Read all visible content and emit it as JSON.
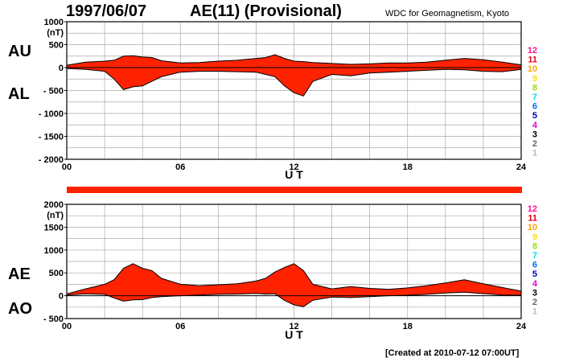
{
  "header": {
    "date": "1997/06/07",
    "title": "AE(11) (Provisional)",
    "org": "WDC for Geomagnetism, Kyoto"
  },
  "footer": {
    "created": "[Created at 2010-07-12 07:00UT]"
  },
  "colors": {
    "fill": "#ff2200",
    "outline": "#000000",
    "grid": "#aaaaaa",
    "strip": "#ff2200"
  },
  "hour_legend": [
    {
      "label": "12",
      "color": "#ff1493"
    },
    {
      "label": "11",
      "color": "#e0001a"
    },
    {
      "label": "10",
      "color": "#ffa500"
    },
    {
      "label": "9",
      "color": "#ffe100"
    },
    {
      "label": "8",
      "color": "#9be000"
    },
    {
      "label": "7",
      "color": "#00e0e0"
    },
    {
      "label": "6",
      "color": "#0070ff"
    },
    {
      "label": "5",
      "color": "#0000c0"
    },
    {
      "label": "4",
      "color": "#e000e0"
    },
    {
      "label": "3",
      "color": "#000000"
    },
    {
      "label": "2",
      "color": "#666666"
    },
    {
      "label": "1",
      "color": "#bbbbbb"
    }
  ],
  "chart_data": [
    {
      "type": "area",
      "name": "AU/AL",
      "x_ticks": [
        "00",
        "06",
        "12",
        "18",
        "24"
      ],
      "xlabel": "U T",
      "ylim": [
        -2000,
        1000
      ],
      "ytick_labels": [
        "1000",
        "500",
        "0",
        "- 500",
        "- 1000",
        "- 1500",
        "- 2000"
      ],
      "yunit": "(nT)",
      "upper_label": "AU",
      "lower_label": "AL",
      "hours": [
        0,
        1,
        2,
        2.5,
        3,
        3.5,
        4,
        4.5,
        5,
        6,
        7,
        8,
        9,
        10,
        10.5,
        11,
        11.5,
        12,
        12.5,
        13,
        14,
        15,
        16,
        17,
        18,
        19,
        20,
        21,
        22,
        23,
        24
      ],
      "upper": [
        50,
        120,
        140,
        160,
        250,
        260,
        230,
        220,
        150,
        100,
        110,
        140,
        160,
        200,
        220,
        280,
        200,
        140,
        130,
        110,
        90,
        70,
        80,
        100,
        100,
        120,
        160,
        200,
        170,
        120,
        60
      ],
      "lower": [
        -20,
        -40,
        -80,
        -250,
        -480,
        -420,
        -400,
        -300,
        -200,
        -100,
        -80,
        -80,
        -90,
        -100,
        -150,
        -200,
        -400,
        -550,
        -620,
        -300,
        -150,
        -180,
        -120,
        -100,
        -80,
        -60,
        -40,
        -50,
        -80,
        -90,
        -40
      ]
    },
    {
      "type": "area",
      "name": "AE/AO",
      "x_ticks": [
        "00",
        "06",
        "12",
        "18",
        "24"
      ],
      "xlabel": "U T",
      "ylim": [
        -500,
        2000
      ],
      "ytick_labels": [
        "2000",
        "1500",
        "1000",
        "500",
        "0",
        "- 500"
      ],
      "yunit": "(nT)",
      "upper_label": "AE",
      "lower_label": "AO",
      "hours": [
        0,
        1,
        2,
        2.5,
        3,
        3.5,
        4,
        4.5,
        5,
        6,
        7,
        8,
        9,
        10,
        10.5,
        11,
        11.5,
        12,
        12.5,
        13,
        14,
        15,
        16,
        17,
        18,
        19,
        20,
        21,
        22,
        23,
        24
      ],
      "upper": [
        40,
        150,
        250,
        350,
        600,
        700,
        600,
        550,
        380,
        250,
        220,
        240,
        260,
        320,
        380,
        520,
        620,
        700,
        550,
        250,
        150,
        200,
        160,
        140,
        170,
        220,
        280,
        350,
        260,
        180,
        100
      ],
      "lower": [
        15,
        40,
        30,
        -50,
        -120,
        -90,
        -85,
        -40,
        -20,
        0,
        15,
        30,
        35,
        50,
        35,
        40,
        -100,
        -200,
        -240,
        -100,
        -30,
        -40,
        -20,
        0,
        10,
        30,
        60,
        75,
        45,
        15,
        10
      ]
    }
  ]
}
